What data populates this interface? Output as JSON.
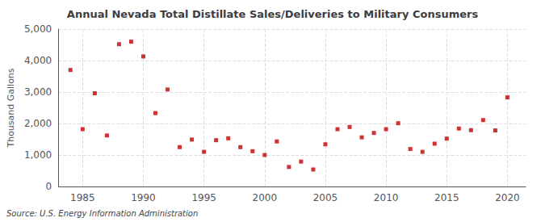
{
  "chart_data": {
    "type": "scatter",
    "title": "Annual Nevada Total Distillate Sales/Deliveries to Military Consumers",
    "ylabel": "Thousand Gallons",
    "annotation": "Source: U.S. Energy Information Administration",
    "x": [
      1984,
      1985,
      1986,
      1987,
      1988,
      1989,
      1990,
      1991,
      1992,
      1993,
      1994,
      1995,
      1996,
      1997,
      1998,
      1999,
      2000,
      2001,
      2002,
      2003,
      2004,
      2005,
      2006,
      2007,
      2008,
      2009,
      2010,
      2011,
      2012,
      2013,
      2014,
      2015,
      2016,
      2017,
      2018,
      2019,
      2020
    ],
    "values": [
      3700,
      1820,
      2960,
      1620,
      4520,
      4600,
      4130,
      2330,
      3080,
      1250,
      1490,
      1100,
      1470,
      1530,
      1250,
      1120,
      1000,
      1430,
      620,
      790,
      540,
      1340,
      1820,
      1890,
      1560,
      1700,
      1820,
      2010,
      1190,
      1100,
      1360,
      1520,
      1840,
      1790,
      2110,
      1780,
      2830
    ],
    "color": "#c00000",
    "marker": "square",
    "xlim": [
      1983.0,
      2021.5
    ],
    "xticks": [
      1985,
      1990,
      1995,
      2000,
      2005,
      2010,
      2015,
      2020
    ],
    "ylim": [
      0,
      5000
    ],
    "yticks": [
      0,
      {
        "value": 1000,
        "label": "1,000"
      },
      {
        "value": 2000,
        "label": "2,000"
      },
      {
        "value": 3000,
        "label": "3,000"
      },
      {
        "value": 4000,
        "label": "4,000"
      },
      {
        "value": 5000,
        "label": "5,000"
      }
    ],
    "grid": true
  }
}
